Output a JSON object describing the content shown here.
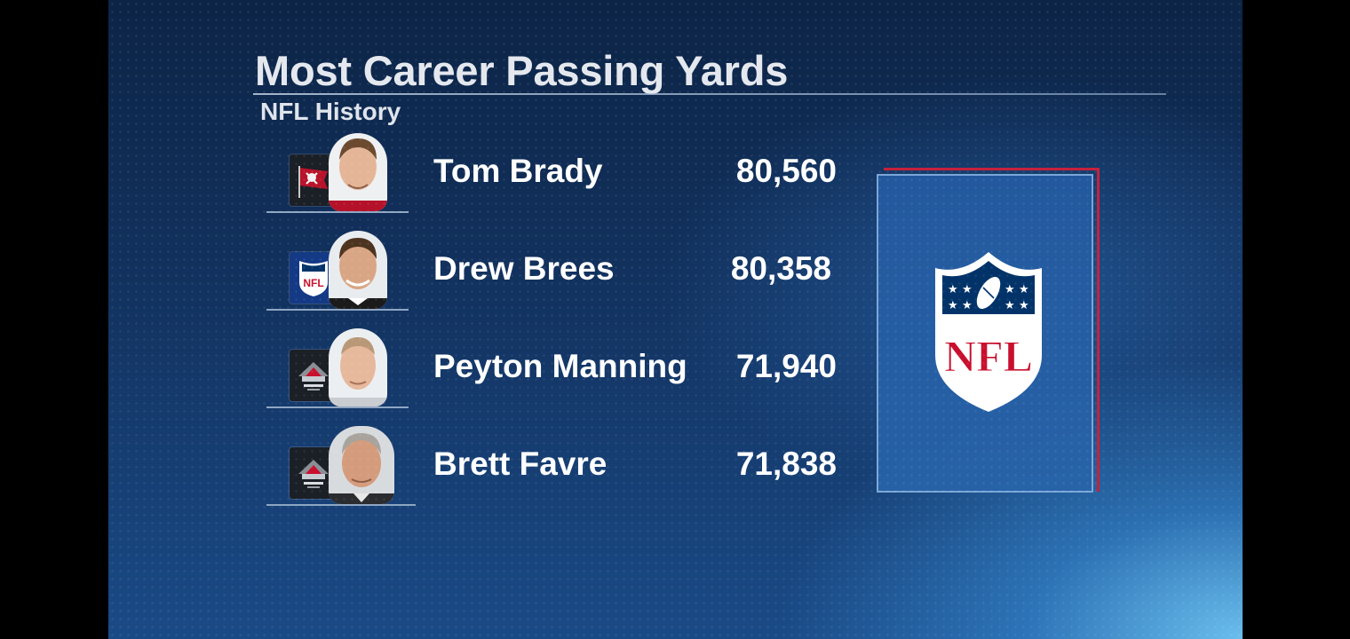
{
  "title": "Most Career Passing Yards",
  "subtitle": "NFL History",
  "leaders": [
    {
      "name": "Tom Brady",
      "yards": "80,560",
      "logo_icon": "buccaneers-flag-icon"
    },
    {
      "name": "Drew Brees",
      "yards": "80,358",
      "logo_icon": "nfl-shield-icon"
    },
    {
      "name": "Peyton Manning",
      "yards": "71,940",
      "logo_icon": "hall-of-fame-icon"
    },
    {
      "name": "Brett Favre",
      "yards": "71,838",
      "logo_icon": "hall-of-fame-icon"
    }
  ],
  "panel_logo": {
    "icon": "nfl-shield-icon",
    "text": "NFL"
  },
  "colors": {
    "background_dark": "#0c2446",
    "background_light": "#7ad2ff",
    "nfl_red": "#c8102e",
    "nfl_blue": "#013369"
  }
}
